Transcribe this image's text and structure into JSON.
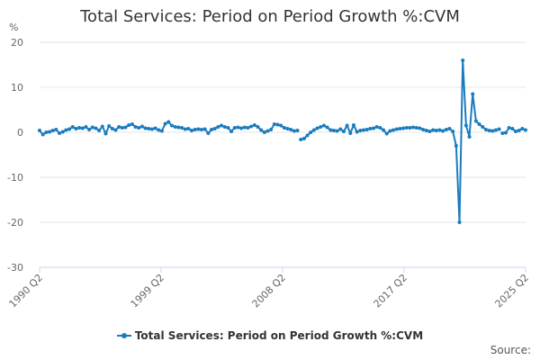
{
  "colors": {
    "series": "#1a7cbf",
    "grid": "#e6e6e6",
    "axis": "#ccd6eb"
  },
  "source_label": "Source:",
  "chart_data": {
    "type": "line",
    "title": "Total Services: Period on Period Growth %:CVM",
    "ylabel": "%",
    "xlabel": "",
    "ylim": [
      -30,
      20
    ],
    "yticks": [
      20,
      10,
      0,
      -10,
      -20,
      -30
    ],
    "grid": true,
    "legend": "bottom-center",
    "x_start": "1990 Q2",
    "x_end": "2025 Q2",
    "xticks": [
      "1990 Q2",
      "1999 Q2",
      "2008 Q2",
      "2017 Q2",
      "2025 Q2"
    ],
    "series": [
      {
        "name": "Total Services: Period on Period Growth %:CVM",
        "gaps_after": [
          49,
          78,
          139
        ],
        "values": [
          0.4,
          -0.5,
          0.0,
          0.1,
          0.4,
          0.6,
          -0.2,
          0.1,
          0.5,
          0.7,
          1.2,
          0.8,
          1.0,
          0.9,
          1.2,
          0.6,
          1.1,
          0.9,
          0.4,
          1.3,
          -0.3,
          1.4,
          0.8,
          0.5,
          1.2,
          1.0,
          1.1,
          1.6,
          1.8,
          1.2,
          1.0,
          1.3,
          0.9,
          0.8,
          0.7,
          0.9,
          0.5,
          0.3,
          1.9,
          2.3,
          1.5,
          1.2,
          1.1,
          1.0,
          0.7,
          0.8,
          0.4,
          0.6,
          0.7,
          0.6,
          0.7,
          -0.2,
          0.6,
          0.8,
          1.2,
          1.5,
          1.2,
          1.0,
          0.2,
          1.0,
          1.1,
          0.9,
          1.1,
          1.0,
          1.3,
          1.6,
          1.2,
          0.5,
          0.0,
          0.3,
          0.6,
          1.8,
          1.7,
          1.5,
          1.0,
          0.8,
          0.6,
          0.3,
          0.4,
          -1.6,
          -1.4,
          -0.7,
          0.0,
          0.5,
          0.9,
          1.2,
          1.5,
          1.1,
          0.5,
          0.4,
          0.3,
          0.7,
          0.2,
          1.5,
          -0.2,
          1.6,
          0.1,
          0.4,
          0.5,
          0.6,
          0.8,
          0.9,
          1.2,
          1.0,
          0.5,
          -0.3,
          0.3,
          0.5,
          0.7,
          0.8,
          0.9,
          1.0,
          1.0,
          1.1,
          1.0,
          0.9,
          0.6,
          0.4,
          0.2,
          0.5,
          0.4,
          0.5,
          0.3,
          0.6,
          0.8,
          0.2,
          -3.0,
          -20.0,
          16.0,
          1.5,
          -1.0,
          8.5,
          2.5,
          1.8,
          1.2,
          0.6,
          0.4,
          0.3,
          0.5,
          0.7,
          -0.2,
          -0.1,
          1.0,
          0.8,
          0.2,
          0.4,
          0.8,
          0.5
        ]
      }
    ]
  }
}
